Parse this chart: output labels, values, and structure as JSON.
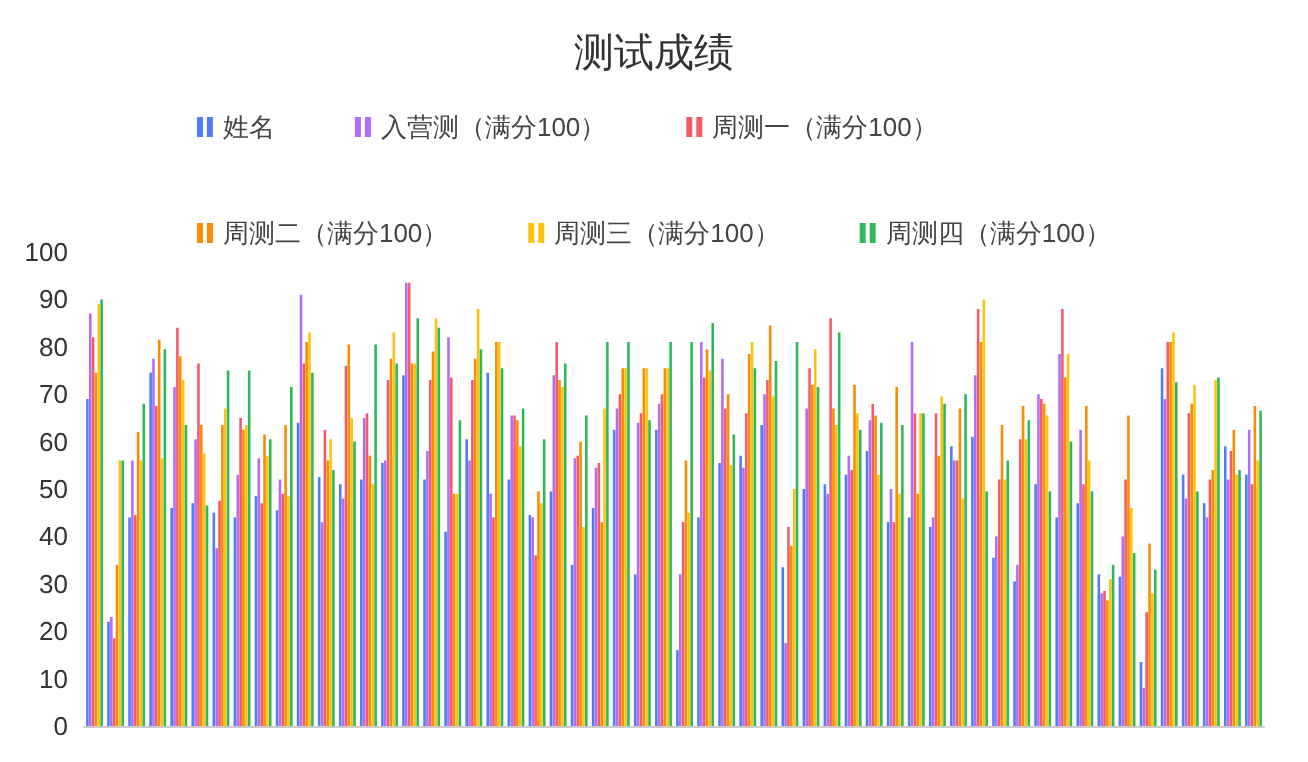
{
  "chart_data": {
    "type": "bar",
    "title": "测试成绩",
    "categories": [
      null,
      null,
      null,
      null,
      null,
      null,
      null,
      null,
      null,
      null,
      null,
      null,
      null,
      null,
      null,
      null,
      null,
      null,
      null,
      null,
      null,
      null,
      null,
      null,
      null,
      null,
      null,
      null,
      null,
      null,
      null,
      null,
      null,
      null,
      null,
      null,
      null,
      null,
      null,
      null,
      null,
      null,
      null,
      null,
      null,
      null,
      null,
      null,
      null,
      null,
      null,
      null,
      null,
      null,
      null,
      null
    ],
    "series": [
      {
        "name": "姓名",
        "color": "#4f7cf7",
        "values": [
          69,
          22,
          44,
          74.5,
          46,
          47,
          45,
          44,
          48.5,
          45.5,
          64,
          52.5,
          51,
          52,
          55.5,
          74,
          52,
          41,
          60.5,
          74.5,
          52,
          44.5,
          49.5,
          34,
          46,
          62.5,
          32,
          62.5,
          16,
          44,
          55.5,
          57,
          63.5,
          33.5,
          50,
          51,
          53,
          58,
          43,
          44,
          42,
          59,
          61,
          35.5,
          30.5,
          51,
          44,
          47,
          32,
          31.5,
          13.5,
          75.5,
          53,
          47,
          59,
          53
        ]
      },
      {
        "name": "入营测（满分100）",
        "color": "#b36cf7",
        "values": [
          87,
          23,
          56,
          77.5,
          71.5,
          60.5,
          37.5,
          53,
          56.5,
          52,
          91,
          43,
          48,
          65,
          56,
          93.5,
          58,
          82,
          56,
          49,
          65.5,
          44,
          74,
          56.5,
          54.5,
          67,
          64,
          68,
          32,
          81,
          77.5,
          54.5,
          70,
          17.5,
          67,
          49,
          57,
          64.5,
          50,
          81,
          44,
          56,
          74,
          40,
          34,
          70,
          78.5,
          62.5,
          28,
          40,
          8,
          69,
          48,
          44,
          52,
          62.5
        ]
      },
      {
        "name": "周测一（满分100）",
        "color": "#f45b69",
        "values": [
          82,
          18.5,
          44.5,
          67.5,
          84,
          76.5,
          47.5,
          65,
          47,
          49,
          76.5,
          62.5,
          76,
          66,
          73,
          93.5,
          73,
          73.5,
          73,
          44,
          65.5,
          36,
          81,
          57,
          55.5,
          70,
          66,
          70,
          43,
          73.5,
          67,
          66,
          73,
          42,
          75.5,
          86,
          54,
          68,
          43,
          66,
          66,
          56,
          88,
          52,
          60.5,
          69,
          88,
          51,
          28.5,
          52,
          24,
          81,
          66,
          52,
          58,
          51
        ]
      },
      {
        "name": "周测二（满分100）",
        "color": "#fb8c00",
        "values": [
          74.5,
          34,
          62,
          81.5,
          78,
          63.5,
          63.5,
          62.5,
          61.5,
          63.5,
          81,
          56,
          80.5,
          57,
          77.5,
          76.5,
          79,
          49,
          77.5,
          81,
          64.5,
          49.5,
          73,
          60,
          43,
          75.5,
          75.5,
          75.5,
          56,
          79.5,
          70,
          78.5,
          84.5,
          38,
          72,
          67,
          72,
          65.5,
          71.5,
          49,
          57,
          67,
          81,
          63.5,
          67.5,
          68,
          73.5,
          67.5,
          26.5,
          65.5,
          38.5,
          81,
          68,
          54,
          62.5,
          67.5
        ]
      },
      {
        "name": "周测三（满分100）",
        "color": "#fcc30e",
        "values": [
          89,
          56,
          56,
          56.5,
          73,
          57.5,
          67,
          63.5,
          57,
          48.5,
          83,
          60.5,
          65,
          51,
          83,
          76.5,
          86,
          49,
          88,
          81,
          59,
          47,
          71.5,
          42,
          67,
          75.5,
          75.5,
          75.5,
          45,
          75,
          55,
          81,
          69.5,
          50,
          79.5,
          63.5,
          66,
          53,
          49,
          66,
          69.5,
          48,
          90,
          52,
          60.5,
          65.5,
          78.5,
          56,
          31,
          46,
          28,
          83,
          72,
          73,
          53,
          56
        ]
      },
      {
        "name": "周测四（满分100）",
        "color": "#2eb85c",
        "values": [
          90,
          56,
          68,
          79.5,
          63.5,
          46.5,
          75,
          75,
          60.5,
          71.5,
          74.5,
          54,
          60,
          80.5,
          76.5,
          86,
          84,
          64.5,
          79.5,
          75.5,
          67,
          60.5,
          76.5,
          65.5,
          81,
          81,
          64.5,
          81,
          81,
          85,
          61.5,
          75.5,
          77,
          81,
          71.5,
          83,
          62.5,
          64,
          63.5,
          66,
          68,
          70,
          49.5,
          56,
          64.5,
          49.5,
          60,
          49.5,
          34,
          36.5,
          33,
          72.5,
          49.5,
          73.5,
          54,
          66.5
        ]
      }
    ],
    "ylim": [
      0,
      100
    ],
    "yticks": [
      0,
      10,
      20,
      30,
      40,
      50,
      60,
      70,
      80,
      90,
      100
    ],
    "grid": false,
    "legend": "top"
  }
}
